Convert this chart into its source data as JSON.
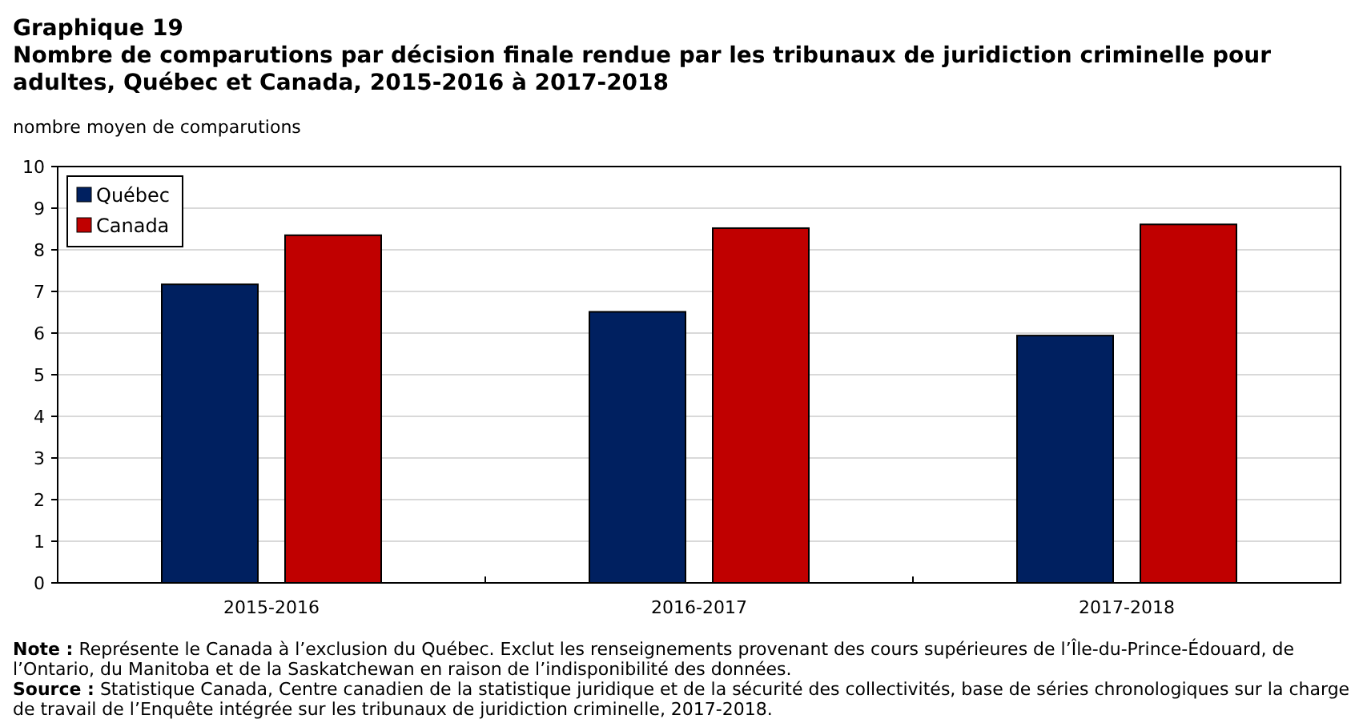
{
  "chart_data": {
    "type": "bar",
    "title": "Graphique 19",
    "subtitle": "Nombre de comparutions par décision finale rendue par les tribunaux de juridiction criminelle pour adultes, Québec et Canada, 2015-2016 à 2017-2018",
    "ylabel": "nombre moyen de comparutions",
    "categories": [
      "2015-2016",
      "2016-2017",
      "2017-2018"
    ],
    "series": [
      {
        "name": "Québec",
        "color": "#002060",
        "values": [
          7.17,
          6.51,
          5.94
        ]
      },
      {
        "name": "Canada",
        "color": "#c00000",
        "values": [
          8.35,
          8.52,
          8.61
        ]
      }
    ],
    "ylim": [
      0,
      10
    ],
    "yticks": [
      0,
      1,
      2,
      3,
      4,
      5,
      6,
      7,
      8,
      9,
      10
    ],
    "grid": "y",
    "legend": "top left",
    "annotations": [
      "Note : Représente le Canada à l’exclusion du Québec. Exclut les renseignements provenant des cours supérieures de l’Île-du-Prince-Édouard, de l’Ontario, du Manitoba et de la Saskatchewan en raison de l’indisponibilité des données.",
      "Source : Statistique Canada, Centre canadien de la statistique juridique et de la sécurité des collectivités, base de séries chronologiques sur la charge de travail de l’Enquête intégrée sur les tribunaux de juridiction criminelle, 2017-2018."
    ]
  }
}
